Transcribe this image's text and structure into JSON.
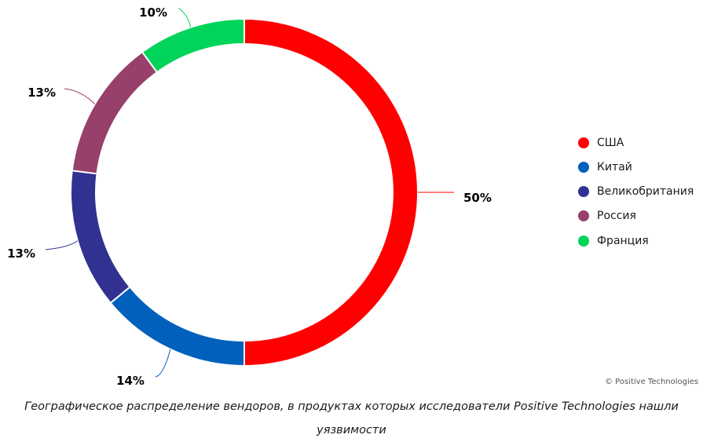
{
  "chart_data": {
    "type": "pie",
    "variant": "donut",
    "categories": [
      "США",
      "Китай",
      "Великобритания",
      "Россия",
      "Франция"
    ],
    "values": [
      50,
      14,
      13,
      13,
      10
    ],
    "data_labels": [
      "50%",
      "14%",
      "13%",
      "13%",
      "10%"
    ],
    "colors": [
      "#ff0000",
      "#0060bb",
      "#313191",
      "#96406b",
      "#00d45a"
    ],
    "legend_position": "right"
  },
  "legend": {
    "items": [
      {
        "label": "США",
        "color": "#ff0000"
      },
      {
        "label": "Китай",
        "color": "#0060bb"
      },
      {
        "label": "Великобритания",
        "color": "#313191"
      },
      {
        "label": "Россия",
        "color": "#96406b"
      },
      {
        "label": "Франция",
        "color": "#00d45a"
      }
    ]
  },
  "copyright": "© Positive Technologies",
  "caption": "Географическое распределение вендоров, в продуктах которых исследователи Positive Technologies нашли уязвимости"
}
